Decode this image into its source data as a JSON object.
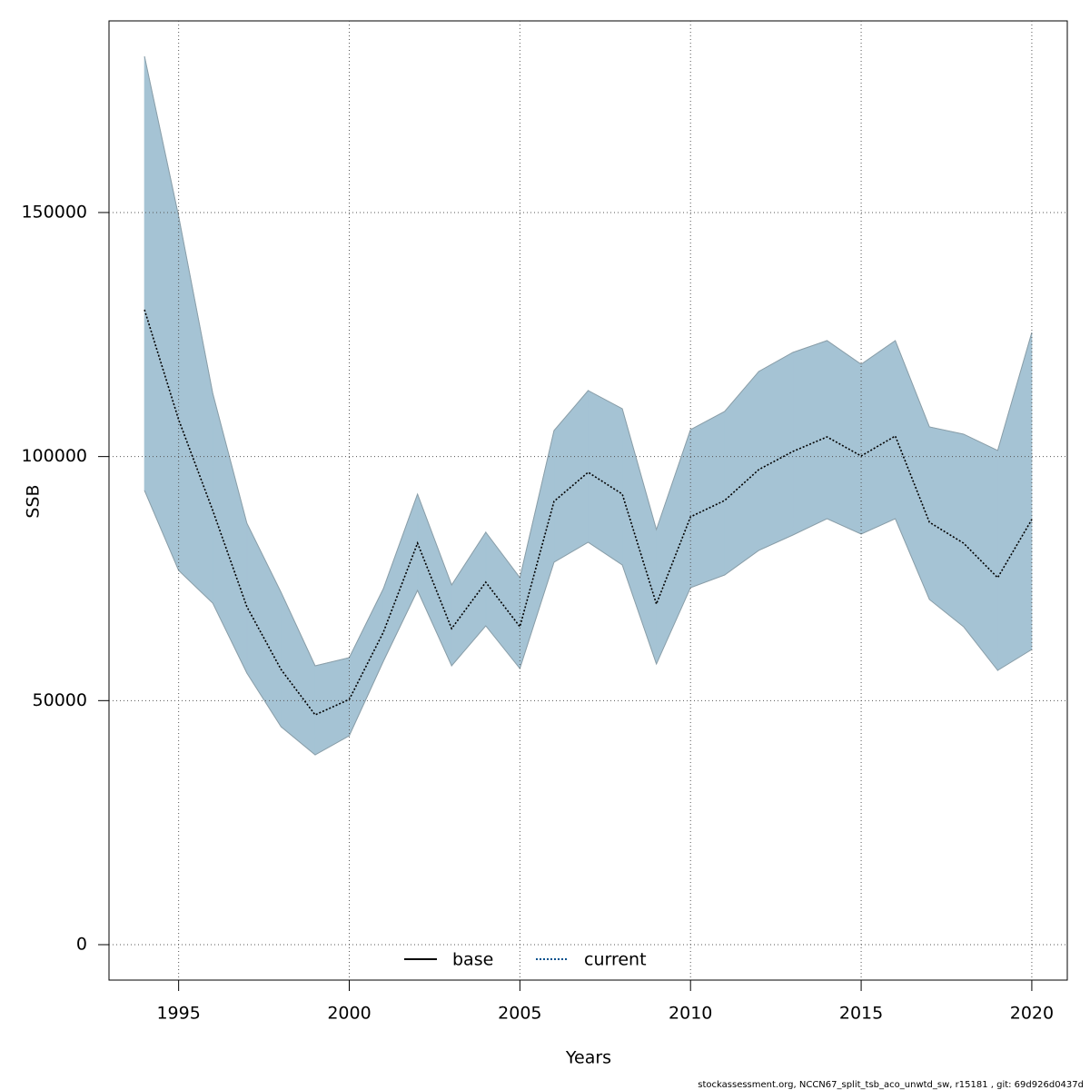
{
  "chart_data": {
    "type": "line",
    "xlabel": "Years",
    "ylabel": "SSB",
    "x": [
      1994,
      1995,
      1996,
      1997,
      1998,
      1999,
      2000,
      2001,
      2002,
      2003,
      2004,
      2005,
      2006,
      2007,
      2008,
      2009,
      2010,
      2011,
      2012,
      2013,
      2014,
      2015,
      2016,
      2017,
      2018,
      2019,
      2020
    ],
    "series": [
      {
        "name": "current",
        "color": "#00508c",
        "dash": "dotted",
        "values": [
          130080,
          107570,
          88960,
          69230,
          56390,
          47080,
          50250,
          64020,
          82260,
          64760,
          74250,
          65140,
          90820,
          96780,
          92310,
          69790,
          87650,
          91000,
          97330,
          101050,
          104030,
          100120,
          104210,
          86540,
          82260,
          75190,
          87100
        ]
      }
    ],
    "band": {
      "color": "#a5c3d4",
      "upper": [
        182010,
        149250,
        112960,
        86350,
        72210,
        57130,
        58810,
        72950,
        92310,
        73700,
        84490,
        75190,
        105330,
        113520,
        109800,
        85050,
        105520,
        109240,
        117430,
        121340,
        123760,
        118920,
        123760,
        106080,
        104590,
        101240,
        125430
      ],
      "lower": [
        93050,
        76670,
        69970,
        55640,
        44660,
        38890,
        42800,
        58060,
        72580,
        57130,
        65320,
        56570,
        78350,
        82440,
        77790,
        57500,
        73140,
        75740,
        80770,
        83930,
        87280,
        84120,
        87280,
        70720,
        65140,
        56200,
        60480
      ]
    },
    "legend_entries": [
      {
        "name": "base",
        "color": "#000000",
        "dash": "solid"
      },
      {
        "name": "current",
        "color": "#00508c",
        "dash": "dotted"
      }
    ],
    "xlim": [
      1992.96,
      2021.04
    ],
    "ylim": [
      -7258,
      189260
    ],
    "xticks": [
      1995,
      2000,
      2005,
      2010,
      2015,
      2020
    ],
    "yticks": [
      0,
      50000,
      100000,
      150000
    ],
    "grid": true,
    "footer": "stockassessment.org, NCCN67_split_tsb_aco_unwtd_sw, r15181 , git: 69d926d0437d"
  }
}
